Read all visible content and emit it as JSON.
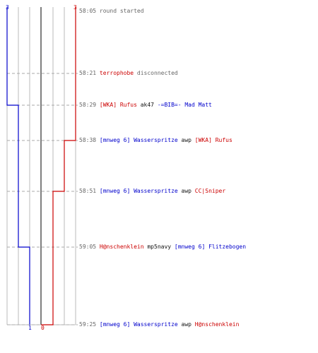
{
  "colors": {
    "team_blue": "#0000cc",
    "team_red": "#cc0000",
    "grid": "#bbbbbb",
    "center": "#555555",
    "dash": "#aaaaaa",
    "timestamp": "#666666",
    "neutral": "#111111"
  },
  "team_counts": {
    "blue_start": "3",
    "red_start": "3",
    "blue_end": "1",
    "red_end": "0"
  },
  "events": [
    {
      "time": "58:05",
      "parts": [
        {
          "text": "round started",
          "team": "info"
        }
      ]
    },
    {
      "time": "58:21",
      "parts": [
        {
          "text": "terrophobe",
          "team": "red"
        },
        {
          "text": " disconnected",
          "team": "info"
        }
      ]
    },
    {
      "time": "58:29",
      "parts": [
        {
          "text": "[WKA] Rufus",
          "team": "red"
        },
        {
          "text": " ak47 ",
          "team": "neutral"
        },
        {
          "text": "-=BIB=- Mad Matt",
          "team": "blue"
        }
      ]
    },
    {
      "time": "58:38",
      "parts": [
        {
          "text": "[mnweg 6] Wasserspritze",
          "team": "blue"
        },
        {
          "text": " awp ",
          "team": "neutral"
        },
        {
          "text": "[WKA] Rufus",
          "team": "red"
        }
      ]
    },
    {
      "time": "58:51",
      "parts": [
        {
          "text": "[mnweg 6] Wasserspritze",
          "team": "blue"
        },
        {
          "text": " awp ",
          "team": "neutral"
        },
        {
          "text": "CC|Sniper",
          "team": "red"
        }
      ]
    },
    {
      "time": "59:05",
      "parts": [
        {
          "text": "H@nschenklein",
          "team": "red"
        },
        {
          "text": " mp5navy ",
          "team": "neutral"
        },
        {
          "text": "[mnweg 6] Flitzebogen",
          "team": "blue"
        }
      ]
    },
    {
      "time": "59:25",
      "parts": [
        {
          "text": "[mnweg 6] Wasserspritze",
          "team": "blue"
        },
        {
          "text": " awp ",
          "team": "neutral"
        },
        {
          "text": "H@nschenklein",
          "team": "red"
        }
      ]
    }
  ],
  "blue_alive": [
    3,
    3,
    2,
    2,
    2,
    1,
    1
  ],
  "red_alive": [
    3,
    3,
    3,
    2,
    1,
    1,
    0
  ]
}
